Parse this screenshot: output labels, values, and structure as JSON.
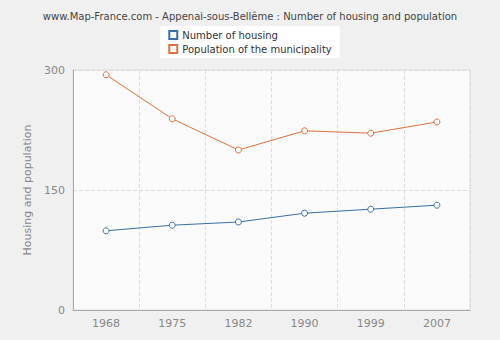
{
  "chart_data": {
    "type": "line",
    "title": "www.Map-France.com - Appenai-sous-Bellême : Number of housing and population",
    "y_label": "Housing and population",
    "categories": [
      "1968",
      "1975",
      "1982",
      "1990",
      "1999",
      "2007"
    ],
    "series": [
      {
        "name": "Number of housing",
        "color": "#3a6ea5",
        "marker": "circle",
        "values": [
          99,
          106,
          110,
          121,
          126,
          131
        ]
      },
      {
        "name": "Population of the municipality",
        "color": "#e0703c",
        "marker": "circle",
        "values": [
          294,
          239,
          200,
          224,
          221,
          235
        ]
      }
    ],
    "ylim": [
      0,
      300
    ],
    "yticks": [
      0,
      150,
      300
    ],
    "grid": true,
    "legend": "top"
  }
}
